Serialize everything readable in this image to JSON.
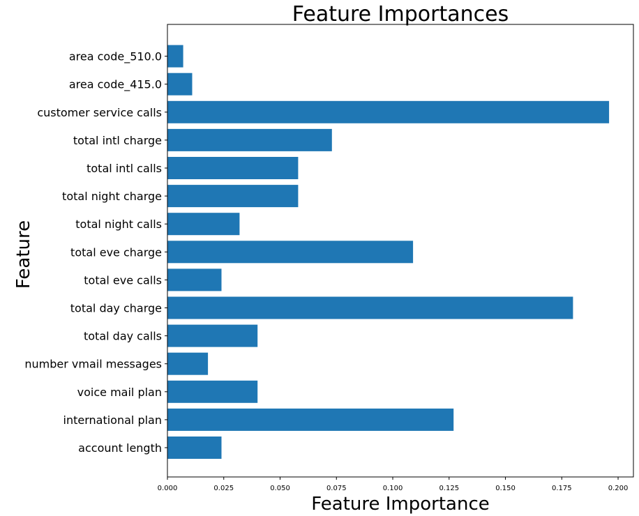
{
  "chart_data": {
    "type": "bar",
    "orientation": "horizontal",
    "title": "Feature Importances",
    "xlabel": "Feature Importance",
    "ylabel": "Feature",
    "xlim": [
      0,
      0.2068
    ],
    "xticks": [
      "0.000",
      "0.025",
      "0.050",
      "0.075",
      "0.100",
      "0.125",
      "0.150",
      "0.175",
      "0.200"
    ],
    "grid": false,
    "bar_color": "#1f77b4",
    "categories": [
      "account length",
      "international plan",
      "voice mail plan",
      "number vmail messages",
      "total day calls",
      "total day charge",
      "total eve calls",
      "total eve charge",
      "total night calls",
      "total night charge",
      "total intl calls",
      "total intl charge",
      "customer service calls",
      "area code_415.0",
      "area code_510.0"
    ],
    "values": [
      0.024,
      0.127,
      0.04,
      0.018,
      0.04,
      0.18,
      0.024,
      0.109,
      0.032,
      0.058,
      0.058,
      0.073,
      0.196,
      0.011,
      0.007
    ]
  }
}
